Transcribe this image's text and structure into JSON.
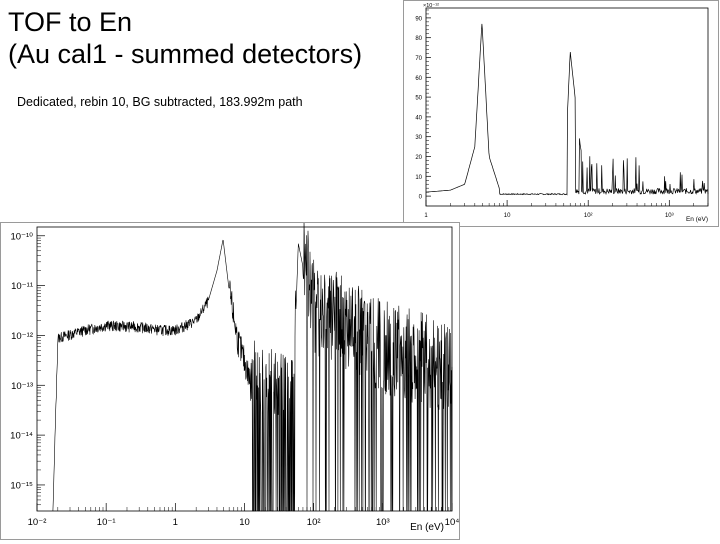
{
  "slide": {
    "title": "TOF to En\n(Au cal1 - summed detectors)",
    "subtitle": "Dedicated, rebin 10, BG subtracted, 183.992m path"
  },
  "chart_data": [
    {
      "type": "line",
      "scale": "linear y, log x",
      "xlabel": "En (eV)",
      "ylabel": "",
      "y_multiplier_label": "×10⁻¹²",
      "xlim": [
        1,
        3000
      ],
      "ylim": [
        -5,
        95
      ],
      "x_tick_labels": [
        "1",
        "10",
        "10²",
        "10³"
      ],
      "y_tick_labels": [
        "0",
        "10",
        "20",
        "30",
        "40",
        "50",
        "60",
        "70",
        "80",
        "90"
      ],
      "series": [
        {
          "x": [
            1,
            2,
            3,
            4,
            4.9,
            6,
            8,
            10,
            20,
            50,
            60,
            80,
            100,
            200,
            500,
            1000,
            3000
          ],
          "y": [
            2,
            3,
            6,
            25,
            88,
            20,
            4,
            2,
            1,
            0.5,
            73,
            25,
            5,
            22,
            14,
            3,
            1
          ]
        }
      ],
      "line_color": "#000000",
      "grid": false
    },
    {
      "type": "line",
      "scale": "log-log",
      "xlabel": "En (eV)",
      "ylabel": "",
      "xlim": [
        0.01,
        10000
      ],
      "ylim": [
        3e-16,
        1.5e-10
      ],
      "x_tick_labels": [
        "10⁻²",
        "10⁻¹",
        "1",
        "10",
        "10²",
        "10³",
        "10⁴"
      ],
      "y_tick_labels": [
        "10⁻¹⁵",
        "10⁻¹⁴",
        "10⁻¹³",
        "10⁻¹²",
        "10⁻¹¹",
        "10⁻¹⁰"
      ],
      "series": [
        {
          "x": [
            0.017,
            0.02,
            0.05,
            0.1,
            0.3,
            0.6,
            1,
            2,
            3,
            4,
            4.9,
            6,
            8,
            12,
            20,
            50,
            60,
            100,
            200,
            500,
            1000,
            5000,
            10000
          ],
          "y": [
            3e-16,
            9e-13,
            1.3e-12,
            1.6e-12,
            1.5e-12,
            1.3e-12,
            1.3e-12,
            2e-12,
            5e-12,
            2e-11,
            8.5e-11,
            8e-12,
            8e-13,
            1.3e-13,
            6e-14,
            5e-14,
            7e-11,
            2e-12,
            1.2e-12,
            6e-13,
            3e-13,
            1.5e-13,
            1e-13
          ]
        }
      ],
      "line_color": "#000000",
      "grid": false
    }
  ]
}
